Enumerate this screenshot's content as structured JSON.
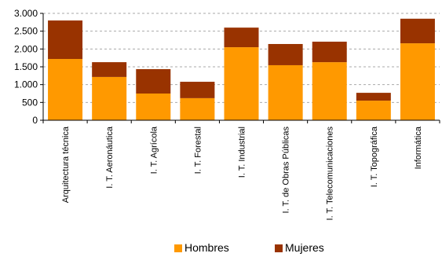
{
  "chart_data": {
    "type": "stacked_bar",
    "categories": [
      "Arquitectura técnica",
      "I. T. Aeronáutica",
      "I. T. Agrícola",
      "I. T. Forestal",
      "I. T. Industrial",
      "I. T. de Obras Públicas",
      "I. T. Telecomunicaciones",
      "I. T. Topográfica",
      "Informática"
    ],
    "series": [
      {
        "name": "Hombres",
        "color": "#ff9900",
        "values": [
          1720,
          1215,
          750,
          620,
          2050,
          1545,
          1630,
          550,
          2160
        ]
      },
      {
        "name": "Mujeres",
        "color": "#993300",
        "values": [
          1080,
          415,
          685,
          460,
          550,
          595,
          575,
          220,
          690
        ]
      }
    ],
    "ylim": [
      0,
      3000
    ],
    "yticks": [
      0,
      500,
      {
        "value": 1000,
        "label": "1.000"
      },
      {
        "value": 1500,
        "label": "1.500"
      },
      {
        "value": 2000,
        "label": "2.000"
      },
      {
        "value": 2500,
        "label": "2.500"
      },
      {
        "value": 3000,
        "label": "3.000"
      }
    ],
    "grid": true,
    "legend": "bottom"
  }
}
